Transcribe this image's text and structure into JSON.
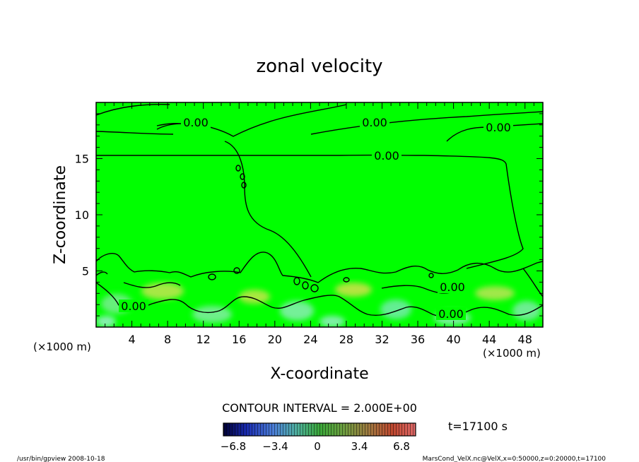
{
  "chart_data": {
    "type": "contour",
    "title": "zonal velocity",
    "xlabel": "X-coordinate",
    "ylabel": "Z-coordinate",
    "x_unit": "(×1000 m)",
    "y_unit": "(×1000 m)",
    "xlim": [
      0,
      50
    ],
    "ylim": [
      0,
      20
    ],
    "x_ticks": [
      "4",
      "8",
      "12",
      "16",
      "20",
      "24",
      "28",
      "32",
      "36",
      "40",
      "44",
      "48"
    ],
    "y_ticks": [
      "5",
      "10",
      "15"
    ],
    "contour_interval_label": "CONTOUR INTERVAL = 2.000E+00",
    "contour_labels": [
      {
        "text": "0.00",
        "x": 11.2,
        "z": 18.0
      },
      {
        "text": "0.00",
        "x": 31.0,
        "z": 18.0
      },
      {
        "text": "0.00",
        "x": 45.0,
        "z": 17.8
      },
      {
        "text": "0.00",
        "x": 32.5,
        "z": 15.3
      },
      {
        "text": "0.00",
        "x": 4.2,
        "z": 1.9
      },
      {
        "text": "0.00",
        "x": 39.7,
        "z": 3.6
      },
      {
        "text": "0.00",
        "x": 39.5,
        "z": 1.2
      }
    ],
    "colorbar": {
      "ticks": [
        "−6.8",
        "−3.4",
        "0",
        "3.4",
        "6.8"
      ],
      "range": [
        -6.8,
        6.8
      ]
    },
    "time_label": "t=17100 s",
    "footer_left": "/usr/bin/gpview   2008-10-18",
    "footer_right": "MarsCond_VelX.nc@VelX,x=0:50000,z=0:20000,t=17100"
  }
}
